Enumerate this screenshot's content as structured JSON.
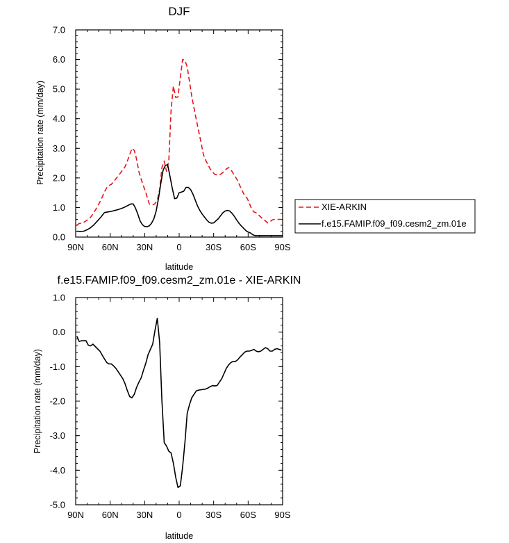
{
  "chart_data": [
    {
      "type": "line",
      "title": "DJF",
      "xlabel": "latitude",
      "ylabel": "Precipitation rate (mm/day)",
      "xlim": [
        -90,
        90
      ],
      "ylim": [
        0,
        7
      ],
      "x_ticks": [
        -90,
        -60,
        -30,
        0,
        30,
        60,
        90
      ],
      "x_tick_labels": [
        "90N",
        "60N",
        "30N",
        "0",
        "30S",
        "60S",
        "90S"
      ],
      "y_ticks": [
        0,
        1,
        2,
        3,
        4,
        5,
        6,
        7
      ],
      "y_tick_labels": [
        "0.0",
        "1.0",
        "2.0",
        "3.0",
        "4.0",
        "5.0",
        "6.0",
        "7.0"
      ],
      "legend": {
        "placement": "outside-right"
      },
      "series": [
        {
          "name": "XIE-ARKIN",
          "color": "#e8141c",
          "dash": "dashed",
          "x": [
            -89,
            -87,
            -84,
            -81,
            -78,
            -75,
            -72,
            -68,
            -65,
            -62,
            -59,
            -56,
            -53,
            -50,
            -47,
            -44,
            -41,
            -39,
            -37,
            -35,
            -32,
            -29,
            -26,
            -23,
            -21,
            -19,
            -17,
            -15,
            -13,
            -11,
            -9,
            -7,
            -5,
            -3,
            -1,
            1,
            3,
            5,
            7,
            9,
            11,
            13,
            15,
            17,
            19,
            21,
            23,
            25,
            27,
            29,
            31,
            33,
            35,
            37,
            39,
            41,
            43,
            45,
            47,
            49,
            51,
            53,
            55,
            57,
            59,
            61,
            63,
            65,
            67,
            69,
            71,
            73,
            75,
            77,
            79,
            81,
            83,
            85,
            87,
            89
          ],
          "y": [
            0.4,
            0.46,
            0.47,
            0.55,
            0.62,
            0.78,
            0.97,
            1.25,
            1.53,
            1.73,
            1.78,
            1.92,
            2.07,
            2.22,
            2.38,
            2.68,
            3.0,
            2.93,
            2.63,
            2.2,
            1.83,
            1.5,
            1.12,
            1.08,
            1.13,
            1.25,
            1.6,
            2.35,
            2.57,
            2.22,
            2.58,
            4.3,
            5.1,
            4.72,
            4.73,
            5.4,
            6.0,
            5.97,
            5.75,
            5.25,
            4.75,
            4.35,
            3.95,
            3.58,
            3.2,
            2.8,
            2.6,
            2.45,
            2.3,
            2.2,
            2.12,
            2.1,
            2.1,
            2.15,
            2.22,
            2.3,
            2.35,
            2.28,
            2.15,
            2.03,
            1.9,
            1.72,
            1.55,
            1.4,
            1.32,
            1.15,
            0.95,
            0.85,
            0.82,
            0.75,
            0.68,
            0.6,
            0.55,
            0.48,
            0.52,
            0.58,
            0.6,
            0.6,
            0.6,
            0.6
          ]
        },
        {
          "name": "f.e15.FAMIP.f09_f09.cesm2_zm.01e",
          "color": "#000000",
          "dash": "solid",
          "x": [
            -89,
            -86,
            -83,
            -80,
            -77,
            -74,
            -71,
            -68,
            -65,
            -62,
            -59,
            -56,
            -53,
            -50,
            -47,
            -44,
            -42,
            -40,
            -38,
            -36,
            -34,
            -32,
            -30,
            -28,
            -26,
            -24,
            -22,
            -20,
            -18,
            -16,
            -14,
            -12,
            -10,
            -8,
            -6,
            -4,
            -2,
            0,
            2,
            4,
            6,
            8,
            10,
            12,
            14,
            16,
            18,
            20,
            22,
            24,
            26,
            28,
            30,
            32,
            34,
            36,
            38,
            40,
            42,
            44,
            46,
            48,
            50,
            52,
            54,
            56,
            58,
            60,
            62,
            64,
            66,
            68,
            70,
            72,
            74,
            76,
            78,
            80,
            82,
            84,
            86,
            88,
            90
          ],
          "y": [
            0.2,
            0.19,
            0.2,
            0.25,
            0.32,
            0.42,
            0.55,
            0.68,
            0.83,
            0.85,
            0.87,
            0.9,
            0.93,
            0.97,
            1.02,
            1.08,
            1.12,
            1.12,
            0.98,
            0.78,
            0.55,
            0.42,
            0.36,
            0.35,
            0.38,
            0.47,
            0.62,
            0.88,
            1.3,
            1.8,
            2.25,
            2.42,
            2.45,
            2.05,
            1.65,
            1.3,
            1.32,
            1.5,
            1.52,
            1.55,
            1.68,
            1.68,
            1.6,
            1.45,
            1.25,
            1.05,
            0.9,
            0.78,
            0.68,
            0.58,
            0.5,
            0.47,
            0.48,
            0.55,
            0.62,
            0.72,
            0.82,
            0.88,
            0.9,
            0.88,
            0.8,
            0.7,
            0.58,
            0.47,
            0.38,
            0.3,
            0.22,
            0.17,
            0.14,
            0.08,
            0.05,
            0.05,
            0.05,
            0.05,
            0.05,
            0.05,
            0.05,
            0.05,
            0.05,
            0.05,
            0.05,
            0.05,
            0.05
          ]
        }
      ]
    },
    {
      "type": "line",
      "title": "f.e15.FAMIP.f09_f09.cesm2_zm.01e - XIE-ARKIN",
      "xlabel": "latitude",
      "ylabel": "Precipitation rate (mm/day)",
      "xlim": [
        -90,
        90
      ],
      "ylim": [
        -5,
        1
      ],
      "x_ticks": [
        -90,
        -60,
        -30,
        0,
        30,
        60,
        90
      ],
      "x_tick_labels": [
        "90N",
        "60N",
        "30N",
        "0",
        "30S",
        "60S",
        "90S"
      ],
      "y_ticks": [
        -5,
        -4,
        -3,
        -2,
        -1,
        0,
        1
      ],
      "y_tick_labels": [
        "-5.0",
        "-4.0",
        "-3.0",
        "-2.0",
        "-1.0",
        "0.0",
        "1.0"
      ],
      "series": [
        {
          "color": "#000000",
          "dash": "solid",
          "x": [
            -89,
            -87,
            -85,
            -83,
            -81,
            -79,
            -77,
            -75,
            -72,
            -69,
            -66,
            -63,
            -61,
            -59,
            -57,
            -55,
            -53,
            -51,
            -49,
            -47,
            -45,
            -43,
            -41,
            -39,
            -37,
            -35,
            -33,
            -31,
            -29,
            -27,
            -25,
            -23,
            -21,
            -19,
            -17,
            -15,
            -13,
            -11,
            -9,
            -7,
            -5,
            -3,
            -1,
            1,
            3,
            5,
            7,
            9,
            11,
            13,
            15,
            17,
            19,
            21,
            23,
            25,
            27,
            29,
            31,
            33,
            35,
            37,
            39,
            41,
            43,
            45,
            47,
            49,
            51,
            53,
            55,
            57,
            59,
            61,
            63,
            65,
            67,
            69,
            71,
            73,
            75,
            77,
            79,
            81,
            83,
            85,
            87,
            89
          ],
          "y": [
            -0.12,
            -0.27,
            -0.25,
            -0.25,
            -0.25,
            -0.38,
            -0.4,
            -0.35,
            -0.45,
            -0.55,
            -0.72,
            -0.88,
            -0.92,
            -0.92,
            -0.98,
            -1.05,
            -1.15,
            -1.25,
            -1.35,
            -1.5,
            -1.7,
            -1.87,
            -1.9,
            -1.8,
            -1.6,
            -1.45,
            -1.32,
            -1.1,
            -0.9,
            -0.65,
            -0.5,
            -0.35,
            0.05,
            0.4,
            -0.3,
            -2.0,
            -3.2,
            -3.3,
            -3.45,
            -3.5,
            -3.8,
            -4.2,
            -4.5,
            -4.45,
            -3.9,
            -3.2,
            -2.35,
            -2.1,
            -1.9,
            -1.8,
            -1.7,
            -1.68,
            -1.67,
            -1.66,
            -1.65,
            -1.62,
            -1.58,
            -1.55,
            -1.56,
            -1.55,
            -1.45,
            -1.35,
            -1.2,
            -1.05,
            -0.95,
            -0.88,
            -0.85,
            -0.85,
            -0.8,
            -0.72,
            -0.65,
            -0.58,
            -0.55,
            -0.55,
            -0.53,
            -0.5,
            -0.55,
            -0.57,
            -0.55,
            -0.5,
            -0.45,
            -0.48,
            -0.55,
            -0.55,
            -0.5,
            -0.48,
            -0.5,
            -0.52
          ]
        }
      ]
    }
  ]
}
